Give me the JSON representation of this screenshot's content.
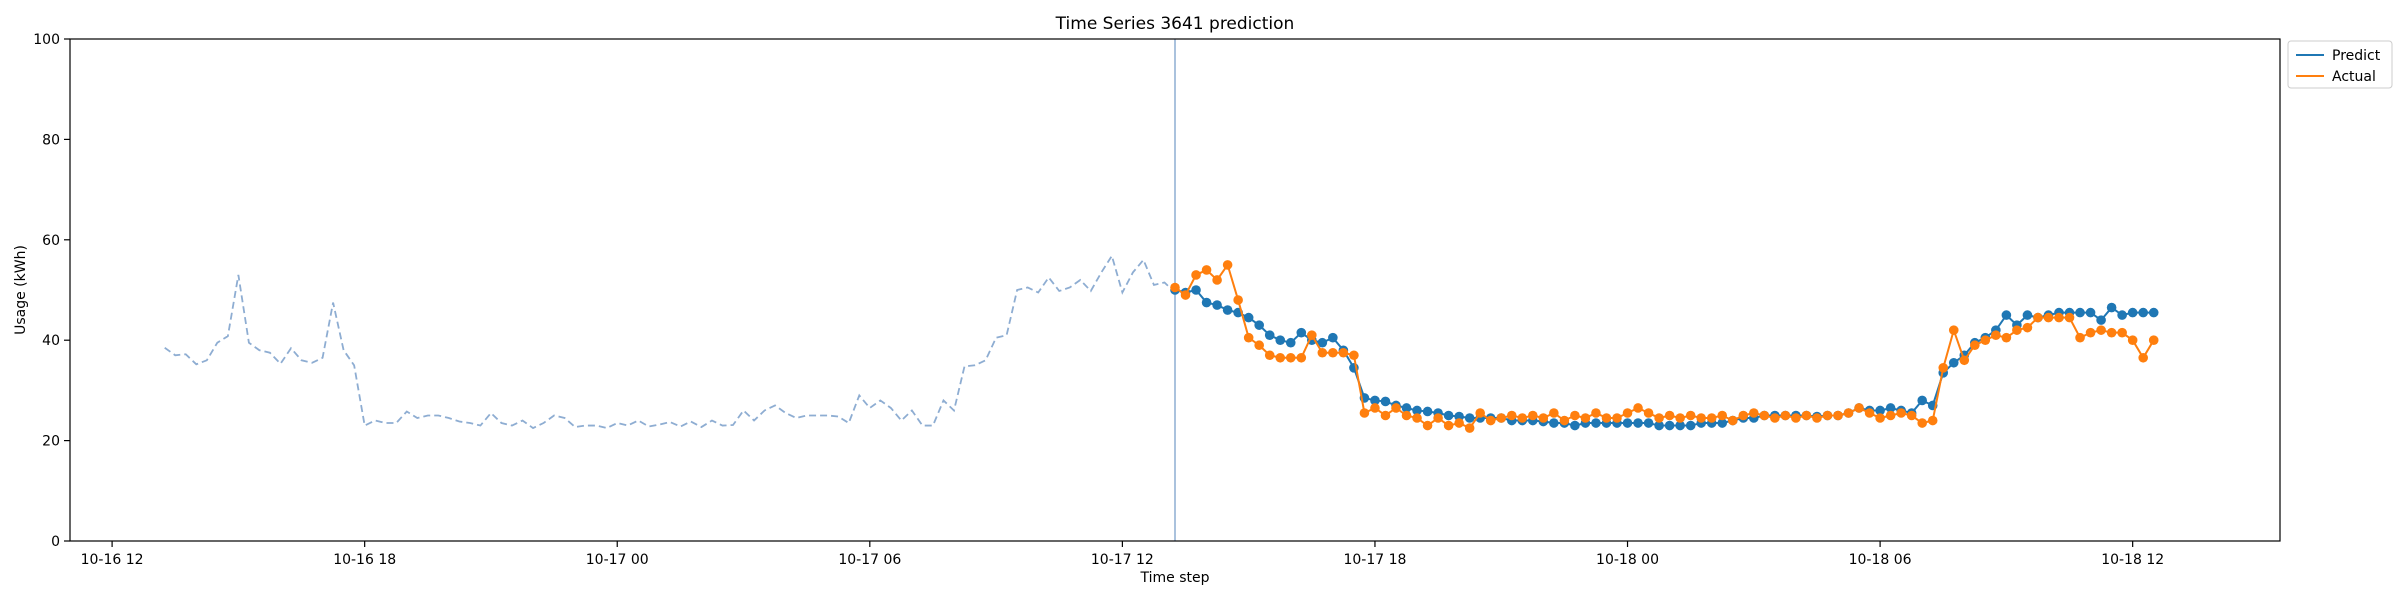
{
  "chart_data": {
    "type": "line",
    "title": "Time Series 3641 prediction",
    "xlabel": "Time step",
    "ylabel": "Usage (kWh)",
    "ylim": [
      0,
      100
    ],
    "yticks": [
      "0",
      "20",
      "40",
      "60",
      "80",
      "100"
    ],
    "xticks": [
      {
        "t": "2023-10-16T12:00",
        "label": "10-16 12"
      },
      {
        "t": "2023-10-16T18:00",
        "label": "10-16 18"
      },
      {
        "t": "2023-10-17T00:00",
        "label": "10-17 00"
      },
      {
        "t": "2023-10-17T06:00",
        "label": "10-17 06"
      },
      {
        "t": "2023-10-17T12:00",
        "label": "10-17 12"
      },
      {
        "t": "2023-10-17T18:00",
        "label": "10-17 18"
      },
      {
        "t": "2023-10-18T00:00",
        "label": "10-18 00"
      },
      {
        "t": "2023-10-18T06:00",
        "label": "10-18 06"
      },
      {
        "t": "2023-10-18T12:00",
        "label": "10-18 12"
      }
    ],
    "xlim": [
      "2023-10-16T11:00",
      "2023-10-18T15:30"
    ],
    "grid": false,
    "legend_position": "outside-top-right",
    "split_time": "2023-10-17T13:15",
    "history": {
      "start": "2023-10-16T13:15",
      "interval_minutes": 15,
      "color": "#8eadd2",
      "values": [
        38.5,
        37.0,
        37.2,
        35.2,
        36.0,
        39.5,
        40.8,
        53.0,
        39.5,
        38.0,
        37.5,
        35.3,
        38.4,
        36.0,
        35.5,
        36.5,
        47.5,
        38.0,
        35.0,
        23.0,
        24.0,
        23.5,
        23.5,
        25.8,
        24.5,
        25.0,
        25.0,
        24.5,
        23.8,
        23.5,
        23.0,
        25.5,
        23.5,
        23.0,
        24.0,
        22.5,
        23.5,
        25.0,
        24.5,
        22.7,
        23.0,
        23.0,
        22.5,
        23.5,
        23.0,
        24.0,
        22.8,
        23.2,
        23.7,
        22.8,
        23.8,
        22.7,
        24.0,
        23.0,
        23.1,
        26.0,
        24.0,
        26.0,
        27.0,
        25.5,
        24.5,
        25.0,
        25.0,
        25.0,
        24.8,
        23.5,
        29.0,
        26.5,
        28.0,
        26.5,
        24.0,
        26.0,
        23.0,
        23.0,
        28.0,
        26.0,
        34.8,
        35.0,
        36.0,
        40.5,
        41.0,
        50.0,
        50.5,
        49.5,
        52.5,
        49.8,
        50.5,
        52.0,
        49.8,
        53.5,
        56.8,
        49.5,
        53.5,
        56.0,
        51.0,
        51.5,
        49.5,
        50.0
      ]
    },
    "series": [
      {
        "name": "Predict",
        "color": "#1f77b4",
        "start": "2023-10-17T13:15",
        "interval_minutes": 15,
        "values": [
          50.0,
          49.5,
          50.0,
          47.5,
          47.0,
          46.0,
          45.5,
          44.5,
          43.0,
          41.0,
          40.0,
          39.5,
          41.5,
          40.0,
          39.5,
          40.5,
          38.0,
          34.5,
          28.5,
          28.0,
          27.8,
          27.0,
          26.5,
          26.0,
          25.8,
          25.5,
          25.0,
          24.8,
          24.5,
          24.5,
          24.5,
          24.5,
          24.0,
          24.0,
          24.0,
          23.8,
          23.5,
          23.5,
          23.0,
          23.5,
          23.5,
          23.5,
          23.5,
          23.5,
          23.5,
          23.5,
          23.0,
          23.0,
          23.0,
          23.0,
          23.5,
          23.5,
          23.5,
          24.0,
          24.5,
          24.5,
          25.0,
          25.0,
          25.0,
          25.0,
          25.0,
          24.8,
          25.0,
          25.0,
          25.5,
          26.5,
          26.0,
          26.0,
          26.5,
          26.0,
          25.5,
          28.0,
          27.0,
          33.5,
          35.5,
          37.0,
          39.5,
          40.5,
          42.0,
          45.0,
          43.0,
          45.0,
          44.5,
          45.0,
          45.5,
          45.5,
          45.5,
          45.5,
          44.0,
          46.5,
          45.0,
          45.5,
          45.5,
          45.5
        ]
      },
      {
        "name": "Actual",
        "color": "#ff7f0e",
        "start": "2023-10-17T13:15",
        "interval_minutes": 15,
        "values": [
          50.5,
          49.0,
          53.0,
          54.0,
          52.0,
          55.0,
          48.0,
          40.5,
          39.0,
          37.0,
          36.5,
          36.5,
          36.5,
          41.0,
          37.5,
          37.5,
          37.5,
          37.0,
          25.5,
          26.5,
          25.0,
          26.5,
          25.0,
          24.5,
          23.0,
          24.5,
          23.0,
          23.5,
          22.5,
          25.5,
          24.0,
          24.5,
          25.0,
          24.5,
          25.0,
          24.5,
          25.5,
          24.0,
          25.0,
          24.5,
          25.5,
          24.5,
          24.5,
          25.5,
          26.5,
          25.5,
          24.5,
          25.0,
          24.5,
          25.0,
          24.5,
          24.5,
          25.0,
          24.0,
          25.0,
          25.5,
          25.0,
          24.5,
          25.0,
          24.5,
          25.0,
          24.5,
          25.0,
          25.0,
          25.5,
          26.5,
          25.5,
          24.5,
          25.0,
          25.5,
          25.0,
          23.5,
          24.0,
          34.5,
          42.0,
          36.0,
          39.0,
          40.0,
          41.0,
          40.5,
          42.0,
          42.5,
          44.5,
          44.5,
          44.5,
          44.5,
          40.5,
          41.5,
          42.0,
          41.5,
          41.5,
          40.0,
          36.5,
          40.0
        ]
      }
    ]
  }
}
